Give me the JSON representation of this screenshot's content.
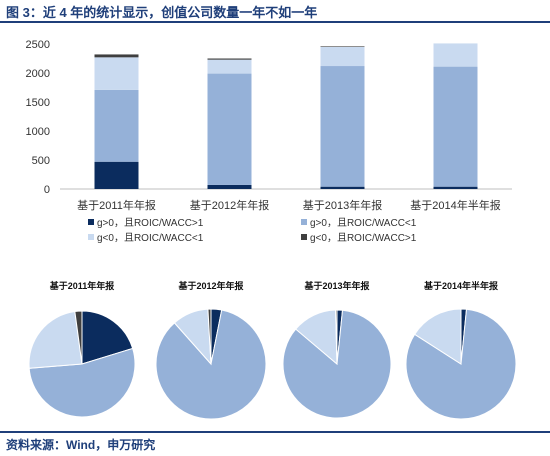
{
  "figure": {
    "title": "图 3：近 4 年的统计显示，创值公司数量一年不如一年",
    "source": "资料来源：Wind，申万研究"
  },
  "colors": {
    "s1": "#0b2c5e",
    "s2": "#95b1d8",
    "s3": "#c9daf0",
    "s4": "#3f3f3f",
    "rule": "#1f3f7a"
  },
  "chart_data": [
    {
      "type": "bar",
      "stacked": true,
      "categories": [
        "基于2011年年报",
        "基于2012年年报",
        "基于2013年年报",
        "基于2014年半年报"
      ],
      "series": [
        {
          "name": "g>0，且ROIC/WACC>1",
          "values": [
            470,
            70,
            40,
            40
          ]
        },
        {
          "name": "g>0，且ROIC/WACC<1",
          "values": [
            1240,
            1920,
            2080,
            2070
          ]
        },
        {
          "name": "g<0，且ROIC/WACC<1",
          "values": [
            560,
            240,
            330,
            400
          ]
        },
        {
          "name": "g<0，且ROIC/WACC>1",
          "values": [
            50,
            20,
            10,
            0
          ]
        }
      ],
      "yticks": [
        0,
        500,
        1000,
        1500,
        2000,
        2500
      ],
      "ylim": [
        0,
        2500
      ],
      "grid": false,
      "legend": "bottom"
    },
    {
      "type": "pie",
      "title": "基于2011年年报",
      "labels": [
        "g>0，且ROIC/WACC>1",
        "g>0，且ROIC/WACC<1",
        "g<0，且ROIC/WACC<1",
        "g<0，且ROIC/WACC>1"
      ],
      "values": [
        470,
        1240,
        560,
        50
      ]
    },
    {
      "type": "pie",
      "title": "基于2012年年报",
      "labels": [
        "g>0，且ROIC/WACC>1",
        "g>0，且ROIC/WACC<1",
        "g<0，且ROIC/WACC<1",
        "g<0，且ROIC/WACC>1"
      ],
      "values": [
        70,
        1920,
        240,
        20
      ]
    },
    {
      "type": "pie",
      "title": "基于2013年年报",
      "labels": [
        "g>0，且ROIC/WACC>1",
        "g>0，且ROIC/WACC<1",
        "g<0，且ROIC/WACC<1",
        "g<0，且ROIC/WACC>1"
      ],
      "values": [
        40,
        2080,
        330,
        10
      ]
    },
    {
      "type": "pie",
      "title": "基于2014年半年报",
      "labels": [
        "g>0，且ROIC/WACC>1",
        "g>0，且ROIC/WACC<1",
        "g<0，且ROIC/WACC<1",
        "g<0，且ROIC/WACC>1"
      ],
      "values": [
        40,
        2070,
        400,
        0
      ]
    }
  ]
}
